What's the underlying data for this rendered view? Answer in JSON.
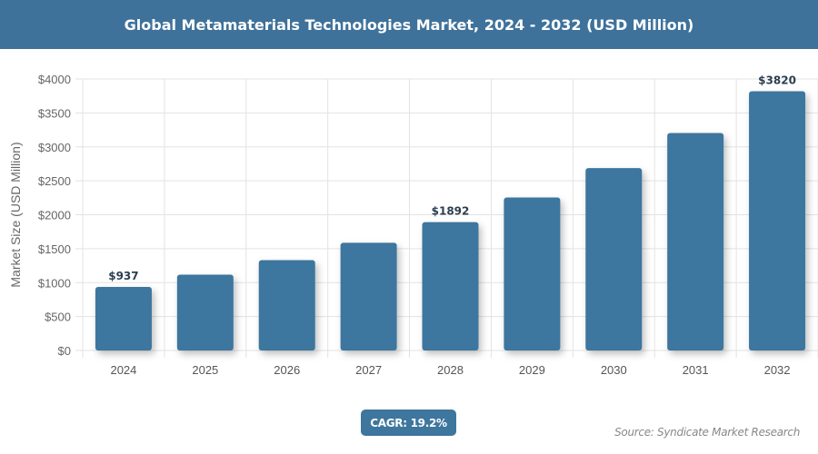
{
  "header": {
    "title": "Global Metamaterials Technologies Market, 2024 - 2032 (USD Million)"
  },
  "chart_data": {
    "type": "bar",
    "title": "Global Metamaterials Technologies Market, 2024 - 2032 (USD Million)",
    "xlabel": "",
    "ylabel": "Market Size (USD Million)",
    "categories": [
      "2024",
      "2025",
      "2026",
      "2027",
      "2028",
      "2029",
      "2030",
      "2031",
      "2032"
    ],
    "values": [
      937,
      1117,
      1331,
      1587,
      1892,
      2255,
      2688,
      3204,
      3820
    ],
    "data_labels": {
      "0": "$937",
      "4": "$1892",
      "8": "$3820"
    },
    "ylim": [
      0,
      4000
    ],
    "yticks": [
      "$0",
      "$500",
      "$1000",
      "$1500",
      "$2000",
      "$2500",
      "$3000",
      "$3500",
      "$4000"
    ],
    "grid": true,
    "bar_color": "#3e769e"
  },
  "cagr": {
    "label": "CAGR: 19.2%"
  },
  "source": {
    "label": "Source: Syndicate Market Research"
  }
}
